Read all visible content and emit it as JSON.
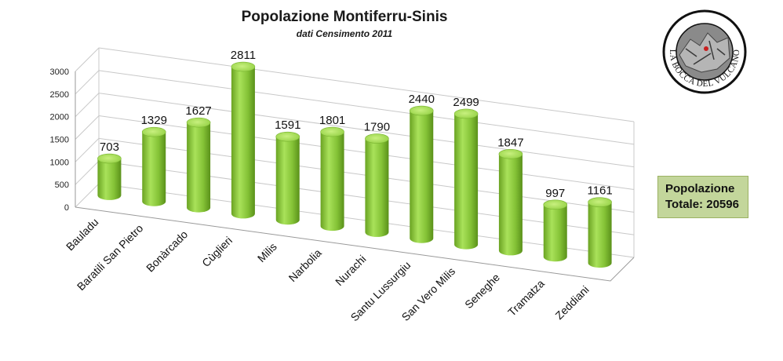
{
  "chart_data": {
    "type": "bar",
    "title": "Popolazione Montiferru-Sinis",
    "subtitle": "dati Censimento 2011",
    "categories": [
      "Bauladu",
      "Baratili San Pietro",
      "Bonàrcado",
      "Cùglieri",
      "Milis",
      "Narbolia",
      "Nurachi",
      "Santu Lussurgiu",
      "San Vero Milis",
      "Seneghe",
      "Tramatza",
      "Zeddiani"
    ],
    "values": [
      703,
      1329,
      1627,
      2811,
      1591,
      1801,
      1790,
      2440,
      2499,
      1847,
      997,
      1161
    ],
    "yticks": [
      "0",
      "500",
      "1000",
      "1500",
      "2000",
      "2500",
      "3000"
    ],
    "ylim": [
      0,
      3000
    ],
    "grid": true,
    "bar_color": "#8fce3f",
    "style": "3d-cylinder"
  },
  "total_box": {
    "line1": "Popolazione",
    "line2": "Totale: 20596"
  },
  "logo": {
    "text": "LA BOCCA DEL VULCANO",
    "icon": "volcano-logo-icon"
  }
}
